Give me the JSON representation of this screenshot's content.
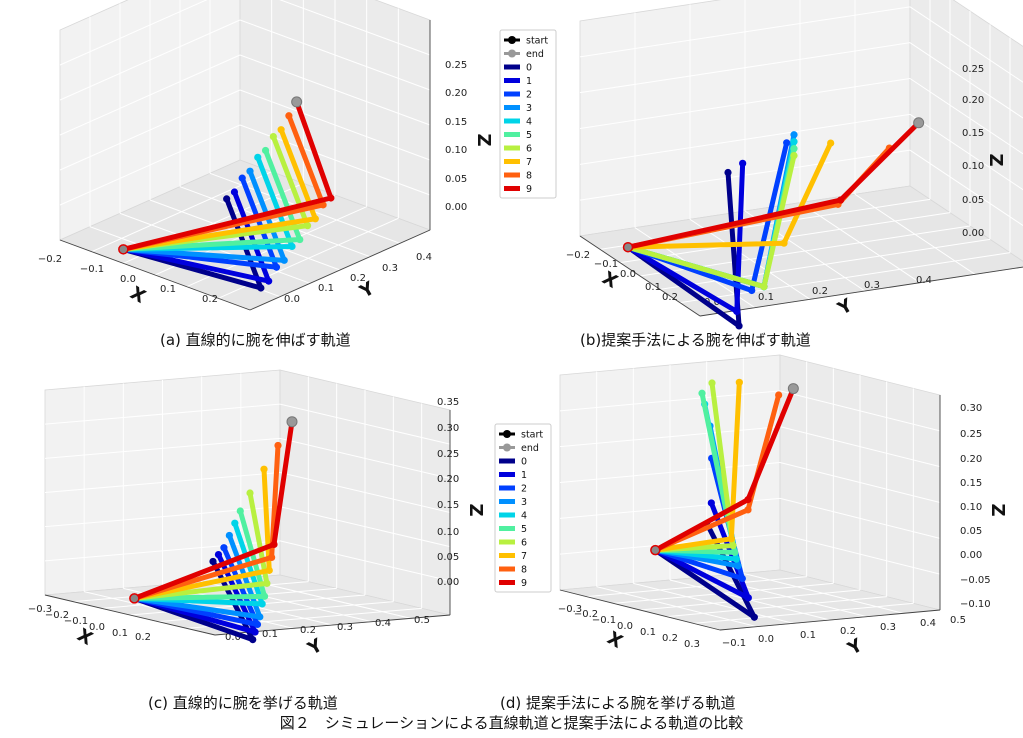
{
  "figure_caption": "図２　シミュレーションによる直線軌道と提案手法による軌道の比較",
  "legend": {
    "labels": [
      "start",
      "end",
      "0",
      "1",
      "2",
      "3",
      "4",
      "5",
      "6",
      "7",
      "8",
      "9"
    ],
    "colors": [
      "#000000",
      "#999999",
      "#00008b",
      "#0000dd",
      "#0040ff",
      "#0090ff",
      "#00d4e8",
      "#50f0a0",
      "#b8f040",
      "#ffc000",
      "#ff6010",
      "#e00000"
    ]
  },
  "chart_data": [
    {
      "type": "line",
      "projection": "3d",
      "caption": "(a) 直線的に腕を伸ばす軌道",
      "axis_labels": {
        "x": "X",
        "y": "Y",
        "z": "Z"
      },
      "xticks": [
        "−0.2",
        "−0.1",
        "0.0",
        "0.1",
        "0.2"
      ],
      "yticks": [
        "0.0",
        "0.1",
        "0.2",
        "0.3",
        "0.4"
      ],
      "zticks": [
        "0.00",
        "0.05",
        "0.10",
        "0.15",
        "0.20",
        "0.25"
      ],
      "xlim": [
        -0.2,
        0.25
      ],
      "ylim": [
        0.0,
        0.45
      ],
      "zlim": [
        -0.02,
        0.28
      ],
      "grid": true,
      "series": [
        {
          "name": "0",
          "points": [
            [
              -0.05,
              0.0,
              0.0
            ],
            [
              0.2,
              0.08,
              -0.02
            ],
            [
              0.1,
              0.1,
              0.08
            ]
          ]
        },
        {
          "name": "1",
          "points": [
            [
              -0.05,
              0.0,
              0.0
            ],
            [
              0.19,
              0.11,
              -0.02
            ],
            [
              0.09,
              0.13,
              0.08
            ]
          ]
        },
        {
          "name": "2",
          "points": [
            [
              -0.05,
              0.0,
              0.0
            ],
            [
              0.18,
              0.14,
              -0.01
            ],
            [
              0.08,
              0.16,
              0.09
            ]
          ]
        },
        {
          "name": "3",
          "points": [
            [
              -0.05,
              0.0,
              0.0
            ],
            [
              0.17,
              0.17,
              -0.01
            ],
            [
              0.07,
              0.19,
              0.09
            ]
          ]
        },
        {
          "name": "4",
          "points": [
            [
              -0.05,
              0.0,
              0.0
            ],
            [
              0.16,
              0.2,
              0.0
            ],
            [
              0.06,
              0.22,
              0.1
            ]
          ]
        },
        {
          "name": "5",
          "points": [
            [
              -0.05,
              0.0,
              0.0
            ],
            [
              0.15,
              0.23,
              0.0
            ],
            [
              0.05,
              0.25,
              0.1
            ]
          ]
        },
        {
          "name": "6",
          "points": [
            [
              -0.05,
              0.0,
              0.0
            ],
            [
              0.14,
              0.26,
              0.01
            ],
            [
              0.04,
              0.28,
              0.11
            ]
          ]
        },
        {
          "name": "7",
          "points": [
            [
              -0.05,
              0.0,
              0.0
            ],
            [
              0.13,
              0.29,
              0.01
            ],
            [
              0.03,
              0.31,
              0.11
            ]
          ]
        },
        {
          "name": "8",
          "points": [
            [
              -0.05,
              0.0,
              0.0
            ],
            [
              0.12,
              0.32,
              0.02
            ],
            [
              0.02,
              0.34,
              0.12
            ]
          ]
        },
        {
          "name": "9",
          "points": [
            [
              -0.05,
              0.0,
              0.0
            ],
            [
              0.11,
              0.35,
              0.02
            ],
            [
              0.01,
              0.37,
              0.13
            ]
          ]
        }
      ],
      "start": [
        -0.05,
        0.0,
        0.0
      ],
      "end": [
        0.01,
        0.37,
        0.13
      ]
    },
    {
      "type": "line",
      "projection": "3d",
      "caption": "(b)提案手法による腕を伸ばす軌道",
      "axis_labels": {
        "x": "X",
        "y": "Y",
        "z": "Z"
      },
      "xticks": [
        "−0.2",
        "−0.1",
        "0.0",
        "0.1",
        "0.2"
      ],
      "yticks": [
        "0.0",
        "0.1",
        "0.2",
        "0.3",
        "0.4"
      ],
      "zticks": [
        "0.00",
        "0.05",
        "0.10",
        "0.15",
        "0.20",
        "0.25"
      ],
      "xlim": [
        -0.25,
        0.25
      ],
      "ylim": [
        0.0,
        0.45
      ],
      "zlim": [
        -0.03,
        0.28
      ],
      "grid": true,
      "series": [
        {
          "name": "0",
          "points": [
            [
              -0.05,
              0.0,
              0.0
            ],
            [
              0.26,
              0.05,
              -0.05
            ],
            [
              0.0,
              0.12,
              0.1
            ]
          ]
        },
        {
          "name": "1",
          "points": [
            [
              -0.05,
              0.0,
              0.0
            ],
            [
              0.22,
              0.06,
              -0.04
            ],
            [
              0.0,
              0.14,
              0.11
            ]
          ]
        },
        {
          "name": "2",
          "points": [
            [
              -0.05,
              0.0,
              0.0
            ],
            [
              0.16,
              0.1,
              -0.03
            ],
            [
              0.0,
              0.2,
              0.13
            ]
          ]
        },
        {
          "name": "3",
          "points": [
            [
              -0.05,
              0.0,
              0.0
            ],
            [
              0.15,
              0.12,
              -0.03
            ],
            [
              0.0,
              0.21,
              0.14
            ]
          ]
        },
        {
          "name": "4",
          "points": [
            [
              -0.05,
              0.0,
              0.0
            ],
            [
              0.15,
              0.12,
              -0.03
            ],
            [
              0.0,
              0.21,
              0.13
            ]
          ]
        },
        {
          "name": "5",
          "points": [
            [
              -0.05,
              0.0,
              0.0
            ],
            [
              0.15,
              0.12,
              -0.03
            ],
            [
              0.0,
              0.21,
              0.12
            ]
          ]
        },
        {
          "name": "6",
          "points": [
            [
              -0.05,
              0.0,
              0.0
            ],
            [
              0.15,
              0.12,
              -0.03
            ],
            [
              0.0,
              0.21,
              0.11
            ]
          ]
        },
        {
          "name": "7",
          "points": [
            [
              -0.05,
              0.0,
              0.0
            ],
            [
              0.05,
              0.18,
              0.0
            ],
            [
              0.0,
              0.26,
              0.12
            ]
          ]
        },
        {
          "name": "8",
          "points": [
            [
              -0.05,
              0.0,
              0.0
            ],
            [
              0.0,
              0.27,
              0.03
            ],
            [
              0.0,
              0.34,
              0.1
            ]
          ]
        },
        {
          "name": "9",
          "points": [
            [
              -0.05,
              0.0,
              0.0
            ],
            [
              -0.02,
              0.28,
              0.03
            ],
            [
              0.0,
              0.38,
              0.13
            ]
          ]
        }
      ],
      "start": [
        -0.05,
        0.0,
        0.0
      ],
      "end": [
        0.0,
        0.38,
        0.13
      ]
    },
    {
      "type": "line",
      "projection": "3d",
      "caption": "(c) 直線的に腕を挙げる軌道",
      "axis_labels": {
        "x": "X",
        "y": "Y",
        "z": "Z"
      },
      "xticks": [
        "−0.3",
        "−0.2",
        "−0.1",
        "0.0",
        "0.1",
        "0.2"
      ],
      "yticks": [
        "0.0",
        "0.1",
        "0.2",
        "0.3",
        "0.4",
        "0.5"
      ],
      "zticks": [
        "0.00",
        "0.05",
        "0.10",
        "0.15",
        "0.20",
        "0.25",
        "0.30",
        "0.35"
      ],
      "xlim": [
        -0.3,
        0.25
      ],
      "ylim": [
        -0.05,
        0.5
      ],
      "zlim": [
        -0.02,
        0.36
      ],
      "grid": true,
      "series": [
        {
          "name": "0",
          "points": [
            [
              -0.08,
              0.0,
              0.0
            ],
            [
              0.22,
              0.06,
              -0.04
            ],
            [
              0.05,
              0.09,
              0.08
            ]
          ]
        },
        {
          "name": "1",
          "points": [
            [
              -0.08,
              0.0,
              0.0
            ],
            [
              0.2,
              0.08,
              -0.03
            ],
            [
              0.04,
              0.11,
              0.09
            ]
          ]
        },
        {
          "name": "2",
          "points": [
            [
              -0.08,
              0.0,
              0.0
            ],
            [
              0.18,
              0.1,
              -0.02
            ],
            [
              0.03,
              0.13,
              0.1
            ]
          ]
        },
        {
          "name": "3",
          "points": [
            [
              -0.08,
              0.0,
              0.0
            ],
            [
              0.16,
              0.12,
              -0.01
            ],
            [
              0.02,
              0.15,
              0.12
            ]
          ]
        },
        {
          "name": "4",
          "points": [
            [
              -0.08,
              0.0,
              0.0
            ],
            [
              0.14,
              0.14,
              0.01
            ],
            [
              0.01,
              0.17,
              0.14
            ]
          ]
        },
        {
          "name": "5",
          "points": [
            [
              -0.08,
              0.0,
              0.0
            ],
            [
              0.12,
              0.16,
              0.02
            ],
            [
              0.0,
              0.19,
              0.16
            ]
          ]
        },
        {
          "name": "6",
          "points": [
            [
              -0.08,
              0.0,
              0.0
            ],
            [
              0.1,
              0.18,
              0.04
            ],
            [
              -0.01,
              0.22,
              0.19
            ]
          ]
        },
        {
          "name": "7",
          "points": [
            [
              -0.08,
              0.0,
              0.0
            ],
            [
              0.08,
              0.2,
              0.06
            ],
            [
              -0.02,
              0.26,
              0.23
            ]
          ]
        },
        {
          "name": "8",
          "points": [
            [
              -0.08,
              0.0,
              0.0
            ],
            [
              0.06,
              0.22,
              0.08
            ],
            [
              -0.03,
              0.3,
              0.27
            ]
          ]
        },
        {
          "name": "9",
          "points": [
            [
              -0.08,
              0.0,
              0.0
            ],
            [
              0.04,
              0.24,
              0.1
            ],
            [
              -0.04,
              0.34,
              0.31
            ]
          ]
        }
      ],
      "start": [
        -0.08,
        0.0,
        0.0
      ],
      "end": [
        -0.04,
        0.34,
        0.31
      ]
    },
    {
      "type": "line",
      "projection": "3d",
      "caption": "(d) 提案手法による腕を挙げる軌道",
      "axis_labels": {
        "x": "X",
        "y": "Y",
        "z": "Z"
      },
      "xticks": [
        "−0.3",
        "−0.2",
        "−0.1",
        "0.0",
        "0.1",
        "0.2",
        "0.3"
      ],
      "yticks": [
        "−0.1",
        "0.0",
        "0.1",
        "0.2",
        "0.3",
        "0.4",
        "0.5"
      ],
      "zticks": [
        "−0.10",
        "−0.05",
        "0.00",
        "0.05",
        "0.10",
        "0.15",
        "0.20",
        "0.25",
        "0.30"
      ],
      "xlim": [
        -0.3,
        0.3
      ],
      "ylim": [
        -0.1,
        0.5
      ],
      "zlim": [
        -0.1,
        0.32
      ],
      "grid": true,
      "series": [
        {
          "name": "0",
          "points": [
            [
              -0.08,
              0.0,
              0.0
            ],
            [
              0.25,
              0.03,
              -0.09
            ],
            [
              0.05,
              0.05,
              0.06
            ]
          ]
        },
        {
          "name": "1",
          "points": [
            [
              -0.08,
              0.0,
              0.0
            ],
            [
              0.2,
              0.05,
              -0.06
            ],
            [
              0.02,
              0.08,
              0.1
            ]
          ]
        },
        {
          "name": "2",
          "points": [
            [
              -0.08,
              0.0,
              0.0
            ],
            [
              0.15,
              0.07,
              -0.03
            ],
            [
              -0.02,
              0.11,
              0.18
            ]
          ]
        },
        {
          "name": "3",
          "points": [
            [
              -0.08,
              0.0,
              0.0
            ],
            [
              0.12,
              0.08,
              -0.01
            ],
            [
              -0.04,
              0.12,
              0.24
            ]
          ]
        },
        {
          "name": "4",
          "points": [
            [
              -0.08,
              0.0,
              0.0
            ],
            [
              0.1,
              0.09,
              0.0
            ],
            [
              -0.06,
              0.12,
              0.28
            ]
          ]
        },
        {
          "name": "5",
          "points": [
            [
              -0.08,
              0.0,
              0.0
            ],
            [
              0.08,
              0.1,
              0.01
            ],
            [
              -0.07,
              0.12,
              0.3
            ]
          ]
        },
        {
          "name": "6",
          "points": [
            [
              -0.08,
              0.0,
              0.0
            ],
            [
              0.06,
              0.11,
              0.02
            ],
            [
              -0.06,
              0.14,
              0.32
            ]
          ]
        },
        {
          "name": "7",
          "points": [
            [
              -0.08,
              0.0,
              0.0
            ],
            [
              0.04,
              0.12,
              0.03
            ],
            [
              -0.04,
              0.2,
              0.32
            ]
          ]
        },
        {
          "name": "8",
          "points": [
            [
              -0.08,
              0.0,
              0.0
            ],
            [
              0.02,
              0.18,
              0.08
            ],
            [
              -0.03,
              0.3,
              0.29
            ]
          ]
        },
        {
          "name": "9",
          "points": [
            [
              -0.08,
              0.0,
              0.0
            ],
            [
              0.02,
              0.18,
              0.1
            ],
            [
              -0.03,
              0.34,
              0.3
            ]
          ]
        }
      ],
      "start": [
        -0.08,
        0.0,
        0.0
      ],
      "end": [
        -0.03,
        0.34,
        0.3
      ]
    }
  ]
}
